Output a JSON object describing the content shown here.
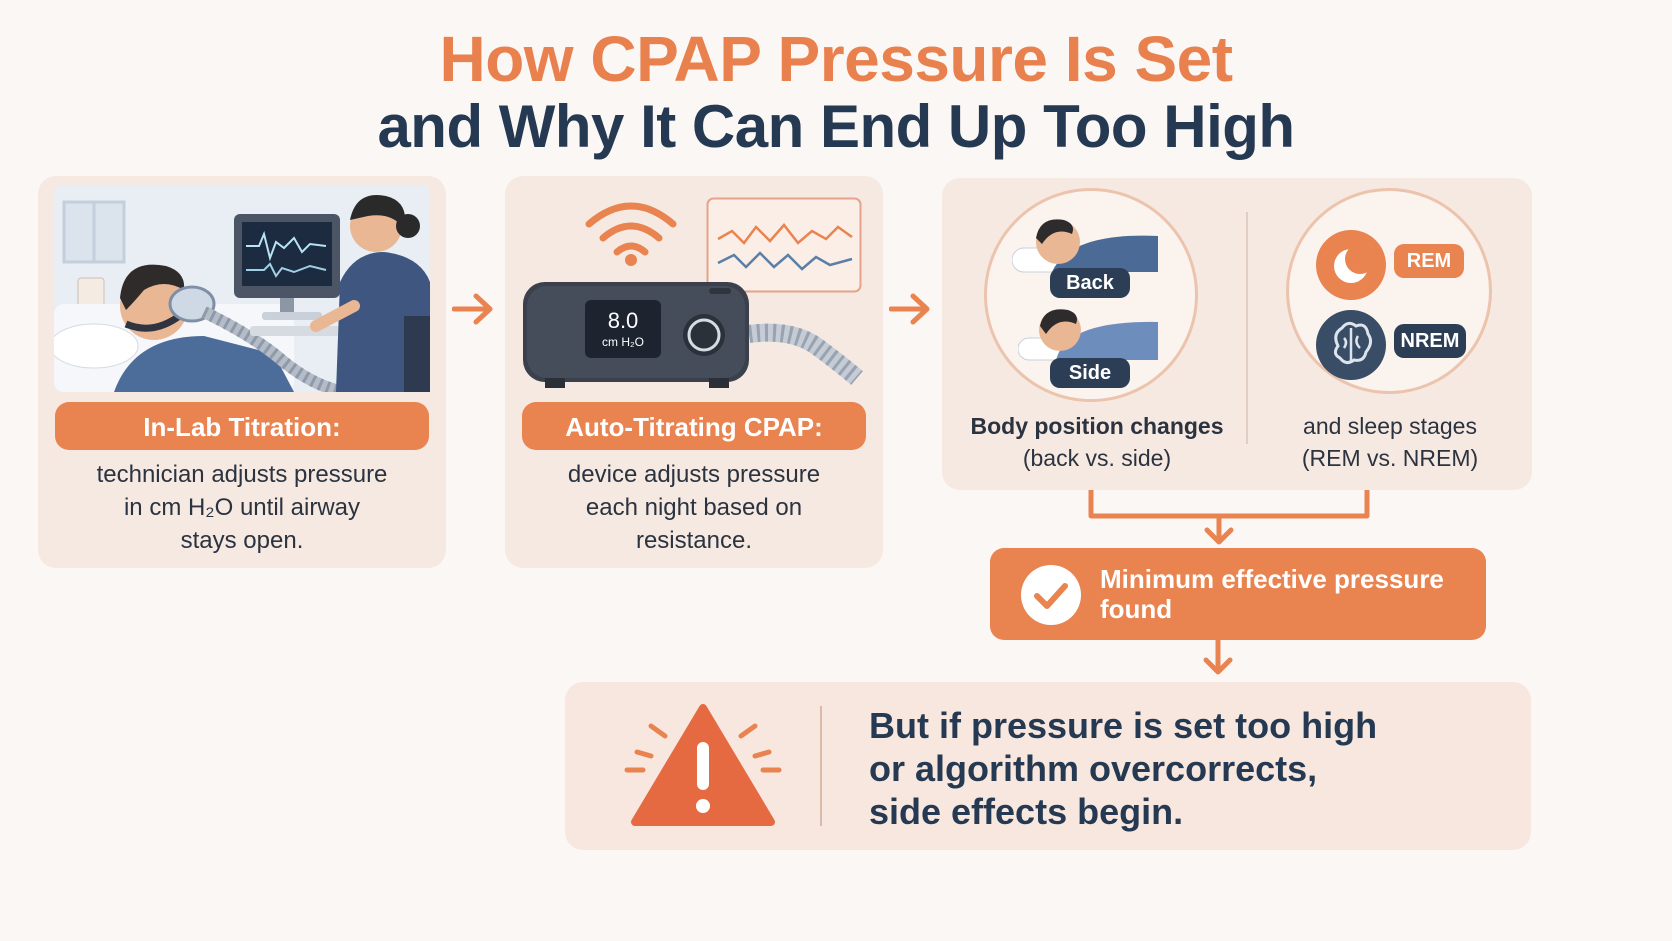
{
  "title": {
    "line1": "How CPAP Pressure Is Set",
    "line2": "and Why It Can End Up Too High"
  },
  "step1": {
    "label": "In-Lab Titration:",
    "desc_line1": "technician adjusts pressure",
    "desc_line2": "in cm H₂O until airway",
    "desc_line3": "stays open."
  },
  "step2": {
    "label": "Auto-Titrating CPAP:",
    "screen_value": "8.0",
    "screen_unit": "cm H₂O",
    "desc_line1": "device adjusts pressure",
    "desc_line2": "each night based on",
    "desc_line3": "resistance."
  },
  "step3": {
    "position_badge_back": "Back",
    "position_badge_side": "Side",
    "position_caption_line1": "Body position changes",
    "position_caption_line2": "(back vs. side)",
    "stage_badge_rem": "REM",
    "stage_badge_nrem": "NREM",
    "stage_caption_line1": "and sleep stages",
    "stage_caption_line2": "(REM vs. NREM)"
  },
  "result": {
    "line1": "Minimum effective pressure",
    "line2": "found"
  },
  "warning": {
    "line1": "But if pressure is set too high",
    "line2": "or algorithm overcorrects,",
    "line3": "side effects begin."
  },
  "colors": {
    "accent": "#e9834f",
    "navy": "#253a52",
    "card": "#f6e9e1",
    "background": "#fbf7f4"
  },
  "icons": [
    "wifi-icon",
    "waveform-icon",
    "checkmark-icon",
    "warning-icon",
    "moon-icon",
    "brain-icon"
  ]
}
